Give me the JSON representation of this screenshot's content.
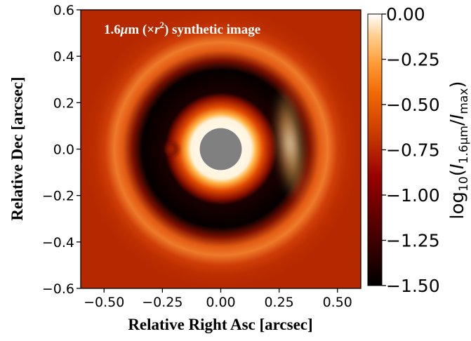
{
  "chart_data": {
    "type": "heatmap",
    "title": "1.6μm (×r²) synthetic image",
    "xlabel": "Relative Right Asc [arcsec]",
    "ylabel": "Relative Dec [arcsec]",
    "xlim": [
      -0.6,
      0.6
    ],
    "ylim": [
      -0.6,
      0.6
    ],
    "x_ticks": [
      -0.5,
      -0.25,
      0.0,
      0.25,
      0.5
    ],
    "x_tick_labels": [
      "−0.50",
      "−0.25",
      "0.00",
      "0.25",
      "0.50"
    ],
    "y_ticks": [
      -0.6,
      -0.4,
      -0.2,
      0.0,
      0.2,
      0.4,
      0.6
    ],
    "y_tick_labels": [
      "−0.6",
      "−0.4",
      "−0.2",
      "0.0",
      "0.2",
      "0.4",
      "0.6"
    ],
    "colorbar": {
      "label": "log10(I1.6μm/Imax)",
      "range": [
        -1.5,
        0.0
      ],
      "ticks": [
        0.0,
        -0.25,
        -0.5,
        -0.75,
        -1.0,
        -1.25,
        -1.5
      ],
      "tick_labels": [
        "0.00",
        "−0.25",
        "−0.50",
        "−0.75",
        "−1.00",
        "−1.25",
        "−1.50"
      ],
      "colormap": "gist_heat"
    },
    "features": {
      "mask_radius_arcsec": 0.09,
      "mask_color": "#808080",
      "inner_ring_radius_arcsec": 0.11,
      "gap_outer_radius_arcsec": 0.23,
      "outer_ring_radius_arcsec": 0.3,
      "background_level": -1.0,
      "companion_x_arcsec": -0.21,
      "companion_y_arcsec": 0.0
    }
  }
}
